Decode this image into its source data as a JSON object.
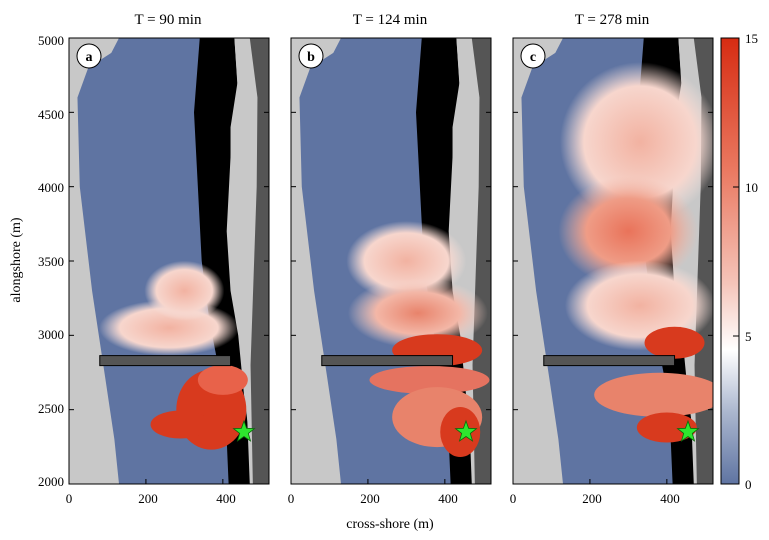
{
  "chart_data": {
    "type": "heatmap",
    "panels": [
      {
        "letter": "a",
        "title": "T =  90 min"
      },
      {
        "letter": "b",
        "title": "T = 124 min"
      },
      {
        "letter": "c",
        "title": "T = 278 min"
      }
    ],
    "xlabel": "cross-shore (m)",
    "ylabel": "alongshore (m)",
    "x_ticks": [
      "0",
      "200",
      "400"
    ],
    "y_ticks": [
      "2000",
      "2500",
      "3000",
      "3500",
      "4000",
      "4500",
      "5000"
    ],
    "xlim": [
      0,
      520
    ],
    "ylim": [
      2000,
      5000
    ],
    "colorbar": {
      "ticks": [
        "0",
        "5",
        "10",
        "15"
      ],
      "range": [
        0,
        15
      ],
      "low_color": "#5f74a2",
      "mid_color": "#ffffff",
      "high_color": "#d62c12"
    },
    "marker": {
      "x": 455,
      "y": 2350,
      "color": "#2ee62e",
      "icon": "star"
    },
    "pier": {
      "x_start": 80,
      "x_end": 420,
      "y": 2830
    },
    "colors": {
      "sand": "#c8c8c8",
      "dry_land": "#555555",
      "masked": "#000000",
      "water_low": "#5f74a2"
    }
  }
}
